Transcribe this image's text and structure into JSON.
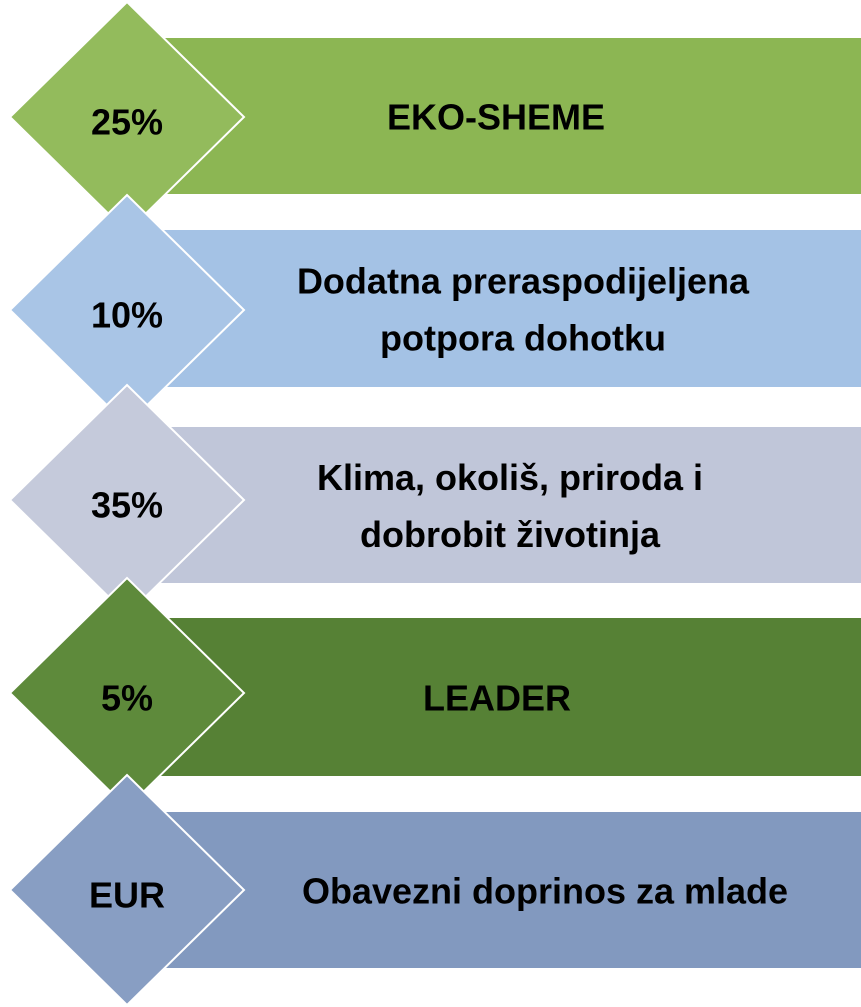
{
  "items": [
    {
      "badge": "25%",
      "lines": [
        "EKO-SHEME"
      ],
      "color": "#8cb653",
      "badge_color": "#93bb5c"
    },
    {
      "badge": "10%",
      "lines": [
        "Dodatna preraspodijeljena",
        "potpora dohotku"
      ],
      "color": "#a4c2e5",
      "badge_color": "#a9c5e6"
    },
    {
      "badge": "35%",
      "lines": [
        "Klima, okoliš, priroda i",
        "dobrobit životinja"
      ],
      "color": "#c0c6d9",
      "badge_color": "#c5cadb"
    },
    {
      "badge": "5%",
      "lines": [
        "LEADER"
      ],
      "color": "#568135",
      "badge_color": "#5e8a3b"
    },
    {
      "badge": "EUR",
      "lines": [
        "Obavezni doprinos za mlade"
      ],
      "color": "#8299bf",
      "badge_color": "#889ec3"
    }
  ]
}
